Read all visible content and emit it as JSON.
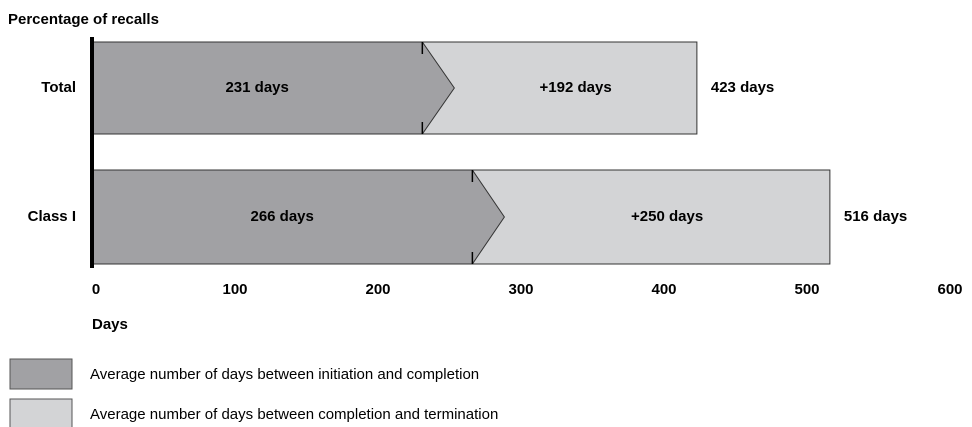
{
  "chart_data": {
    "type": "stacked-barh",
    "title": "Percentage of recalls",
    "xlabel": "Days",
    "categories": [
      "Total",
      "Class I"
    ],
    "series": [
      {
        "name": "Average number of days between initiation and completion",
        "color": "#a1a1a4",
        "values": [
          231,
          266
        ],
        "value_labels": [
          "231 days",
          "266 days"
        ]
      },
      {
        "name": "Average number of days between completion and termination",
        "color": "#d3d4d6",
        "values": [
          192,
          250
        ],
        "value_labels": [
          "+192 days",
          "+250 days"
        ]
      }
    ],
    "totals": [
      423,
      516
    ],
    "total_labels": [
      "423 days",
      "516 days"
    ],
    "xlim": [
      0,
      600
    ],
    "xticks": [
      0,
      100,
      200,
      300,
      400,
      500,
      600
    ]
  }
}
